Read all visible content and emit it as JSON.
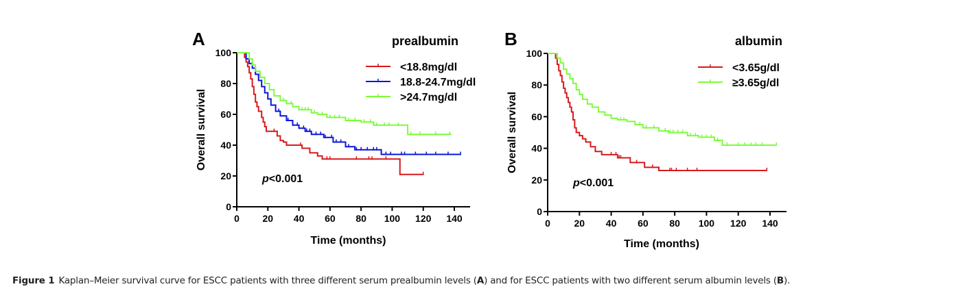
{
  "caption": {
    "label": "Figure 1",
    "text_1": "Kaplan–Meier survival curve for ESCC patients with three different serum prealbumin levels (",
    "ref_a": "A",
    "text_2": ") and for ESCC patients with two different serum albumin levels (",
    "ref_b": "B",
    "text_3": ")."
  },
  "chart_data": [
    {
      "type": "line",
      "subtype": "kaplan-meier-step",
      "panel_label": "A",
      "title": "prealbumin",
      "xlabel": "Time (months)",
      "ylabel": "Overall survival",
      "xlim": [
        0,
        150
      ],
      "ylim": [
        0,
        100
      ],
      "xticks": [
        0,
        20,
        40,
        60,
        80,
        100,
        120,
        140
      ],
      "yticks": [
        0,
        20,
        40,
        60,
        80,
        100
      ],
      "grid": false,
      "legend_position": "top-right",
      "annotation": {
        "italic": "p",
        "text": "<0.001"
      },
      "series": [
        {
          "name": "<18.8mg/dl",
          "color": "#d7191c",
          "steps": [
            [
              0,
              100
            ],
            [
              4,
              100
            ],
            [
              5,
              97
            ],
            [
              6,
              94
            ],
            [
              7,
              91
            ],
            [
              8,
              87
            ],
            [
              9,
              83
            ],
            [
              10,
              78
            ],
            [
              11,
              73
            ],
            [
              12,
              68
            ],
            [
              13,
              65
            ],
            [
              14,
              62
            ],
            [
              16,
              58
            ],
            [
              17,
              55
            ],
            [
              18,
              52
            ],
            [
              19,
              49
            ],
            [
              26,
              46
            ],
            [
              28,
              43
            ],
            [
              30,
              42
            ],
            [
              32,
              40
            ],
            [
              42,
              38
            ],
            [
              47,
              35
            ],
            [
              52,
              33
            ],
            [
              55,
              31
            ],
            [
              105,
              21
            ],
            [
              120,
              21
            ]
          ],
          "censor_times": [
            24,
            41,
            58,
            60,
            77,
            85,
            87,
            96,
            105,
            120
          ]
        },
        {
          "name": "18.8-24.7mg/dl",
          "color": "#0a14d8",
          "steps": [
            [
              0,
              100
            ],
            [
              4,
              100
            ],
            [
              6,
              96
            ],
            [
              8,
              93
            ],
            [
              10,
              90
            ],
            [
              12,
              86
            ],
            [
              14,
              82
            ],
            [
              16,
              78
            ],
            [
              18,
              74
            ],
            [
              20,
              70
            ],
            [
              22,
              66
            ],
            [
              25,
              62
            ],
            [
              28,
              59
            ],
            [
              32,
              56
            ],
            [
              36,
              53
            ],
            [
              40,
              51
            ],
            [
              44,
              49
            ],
            [
              48,
              47
            ],
            [
              56,
              45
            ],
            [
              62,
              42
            ],
            [
              70,
              39
            ],
            [
              76,
              37
            ],
            [
              93,
              34
            ],
            [
              144,
              34
            ]
          ],
          "censor_times": [
            27,
            33,
            39,
            43,
            45,
            47,
            51,
            54,
            57,
            61,
            64,
            67,
            72,
            77,
            80,
            84,
            88,
            90,
            96,
            99,
            106,
            108,
            115,
            122,
            128,
            136,
            144
          ]
        },
        {
          "name": ">24.7mg/dl",
          "color": "#7cfc3c",
          "steps": [
            [
              0,
              100
            ],
            [
              6,
              100
            ],
            [
              8,
              96
            ],
            [
              10,
              92
            ],
            [
              12,
              88
            ],
            [
              15,
              84
            ],
            [
              18,
              80
            ],
            [
              21,
              76
            ],
            [
              24,
              72
            ],
            [
              28,
              69
            ],
            [
              32,
              67
            ],
            [
              36,
              65
            ],
            [
              40,
              63
            ],
            [
              48,
              61
            ],
            [
              52,
              60
            ],
            [
              58,
              58
            ],
            [
              70,
              56
            ],
            [
              80,
              55
            ],
            [
              88,
              53
            ],
            [
              110,
              47
            ],
            [
              138,
              47
            ]
          ],
          "censor_times": [
            30,
            35,
            42,
            44,
            46,
            50,
            55,
            60,
            63,
            66,
            72,
            76,
            82,
            86,
            90,
            95,
            98,
            104,
            112,
            118,
            128,
            137
          ]
        }
      ]
    },
    {
      "type": "line",
      "subtype": "kaplan-meier-step",
      "panel_label": "B",
      "title": "albumin",
      "xlabel": "Time (months)",
      "ylabel": "Overall survival",
      "xlim": [
        0,
        150
      ],
      "ylim": [
        0,
        100
      ],
      "xticks": [
        0,
        20,
        40,
        60,
        80,
        100,
        120,
        140
      ],
      "yticks": [
        0,
        20,
        40,
        60,
        80,
        100
      ],
      "grid": false,
      "legend_position": "top-right",
      "annotation": {
        "italic": "p",
        "text": "<0.001"
      },
      "series": [
        {
          "name": "<3.65g/dl",
          "color": "#d7191c",
          "steps": [
            [
              0,
              100
            ],
            [
              4,
              100
            ],
            [
              5,
              97
            ],
            [
              6,
              93
            ],
            [
              7,
              89
            ],
            [
              8,
              86
            ],
            [
              9,
              82
            ],
            [
              10,
              78
            ],
            [
              11,
              75
            ],
            [
              12,
              72
            ],
            [
              13,
              69
            ],
            [
              14,
              66
            ],
            [
              15,
              63
            ],
            [
              16,
              58
            ],
            [
              17,
              53
            ],
            [
              18,
              50
            ],
            [
              20,
              48
            ],
            [
              22,
              46
            ],
            [
              24,
              44
            ],
            [
              27,
              41
            ],
            [
              30,
              38
            ],
            [
              34,
              36
            ],
            [
              44,
              34
            ],
            [
              52,
              31
            ],
            [
              61,
              28
            ],
            [
              70,
              26
            ],
            [
              138,
              26
            ]
          ],
          "censor_times": [
            40,
            43,
            45,
            46,
            56,
            66,
            77,
            78,
            81,
            88,
            94,
            138
          ]
        },
        {
          "name": "≥3.65g/dl",
          "color": "#7cfc3c",
          "steps": [
            [
              0,
              100
            ],
            [
              4,
              100
            ],
            [
              6,
              97
            ],
            [
              8,
              94
            ],
            [
              10,
              90
            ],
            [
              12,
              87
            ],
            [
              14,
              84
            ],
            [
              16,
              81
            ],
            [
              18,
              77
            ],
            [
              20,
              74
            ],
            [
              22,
              71
            ],
            [
              25,
              68
            ],
            [
              28,
              66
            ],
            [
              32,
              63
            ],
            [
              36,
              61
            ],
            [
              40,
              59
            ],
            [
              44,
              58
            ],
            [
              50,
              57
            ],
            [
              55,
              55
            ],
            [
              60,
              53
            ],
            [
              70,
              51
            ],
            [
              76,
              50
            ],
            [
              88,
              48
            ],
            [
              95,
              47
            ],
            [
              105,
              45
            ],
            [
              110,
              42
            ],
            [
              144,
              42
            ]
          ],
          "censor_times": [
            46,
            48,
            58,
            62,
            67,
            74,
            77,
            79,
            82,
            85,
            90,
            93,
            97,
            100,
            103,
            107,
            113,
            120,
            124,
            128,
            131,
            135,
            144
          ]
        }
      ]
    }
  ]
}
